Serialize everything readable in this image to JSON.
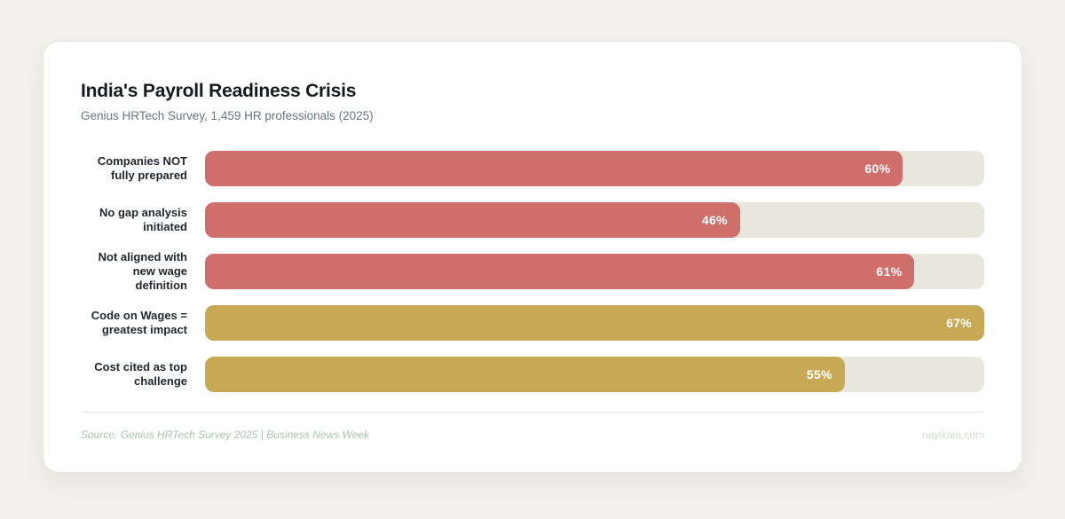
{
  "card": {
    "title": "India's Payroll Readiness Crisis",
    "subtitle": "Genius HRTech Survey, 1,459 HR professionals (2025)",
    "source": "Source: Genius HRTech Survey 2025 | Business News Week",
    "site": "nayikala.com"
  },
  "colors": {
    "page_background": "#f3f1eb",
    "card_background": "#ffffff",
    "risk_bar": "#cf6f6b",
    "impact_bar": "#c7a955",
    "track": "#e9e6de",
    "value_text": "#ffffff"
  },
  "chart_data": {
    "type": "bar",
    "orientation": "horizontal",
    "title": "India's Payroll Readiness Crisis",
    "subtitle": "Genius HRTech Survey, 1,459 HR professionals (2025)",
    "xlabel": "",
    "ylabel": "",
    "categories": [
      "Companies NOT fully prepared",
      "No gap analysis initiated",
      "Not aligned with new wage definition",
      "Code on Wages = greatest impact",
      "Cost cited as top challenge"
    ],
    "values": [
      60,
      46,
      61,
      67,
      55
    ],
    "value_labels": [
      "60%",
      "46%",
      "61%",
      "67%",
      "55%"
    ],
    "bar_colors": [
      "#cf6f6b",
      "#cf6f6b",
      "#cf6f6b",
      "#c7a955",
      "#c7a955"
    ],
    "track_color": "#e9e6de",
    "max_value": 67,
    "value_label_position": "inside-end",
    "grid": false,
    "legend": false
  }
}
